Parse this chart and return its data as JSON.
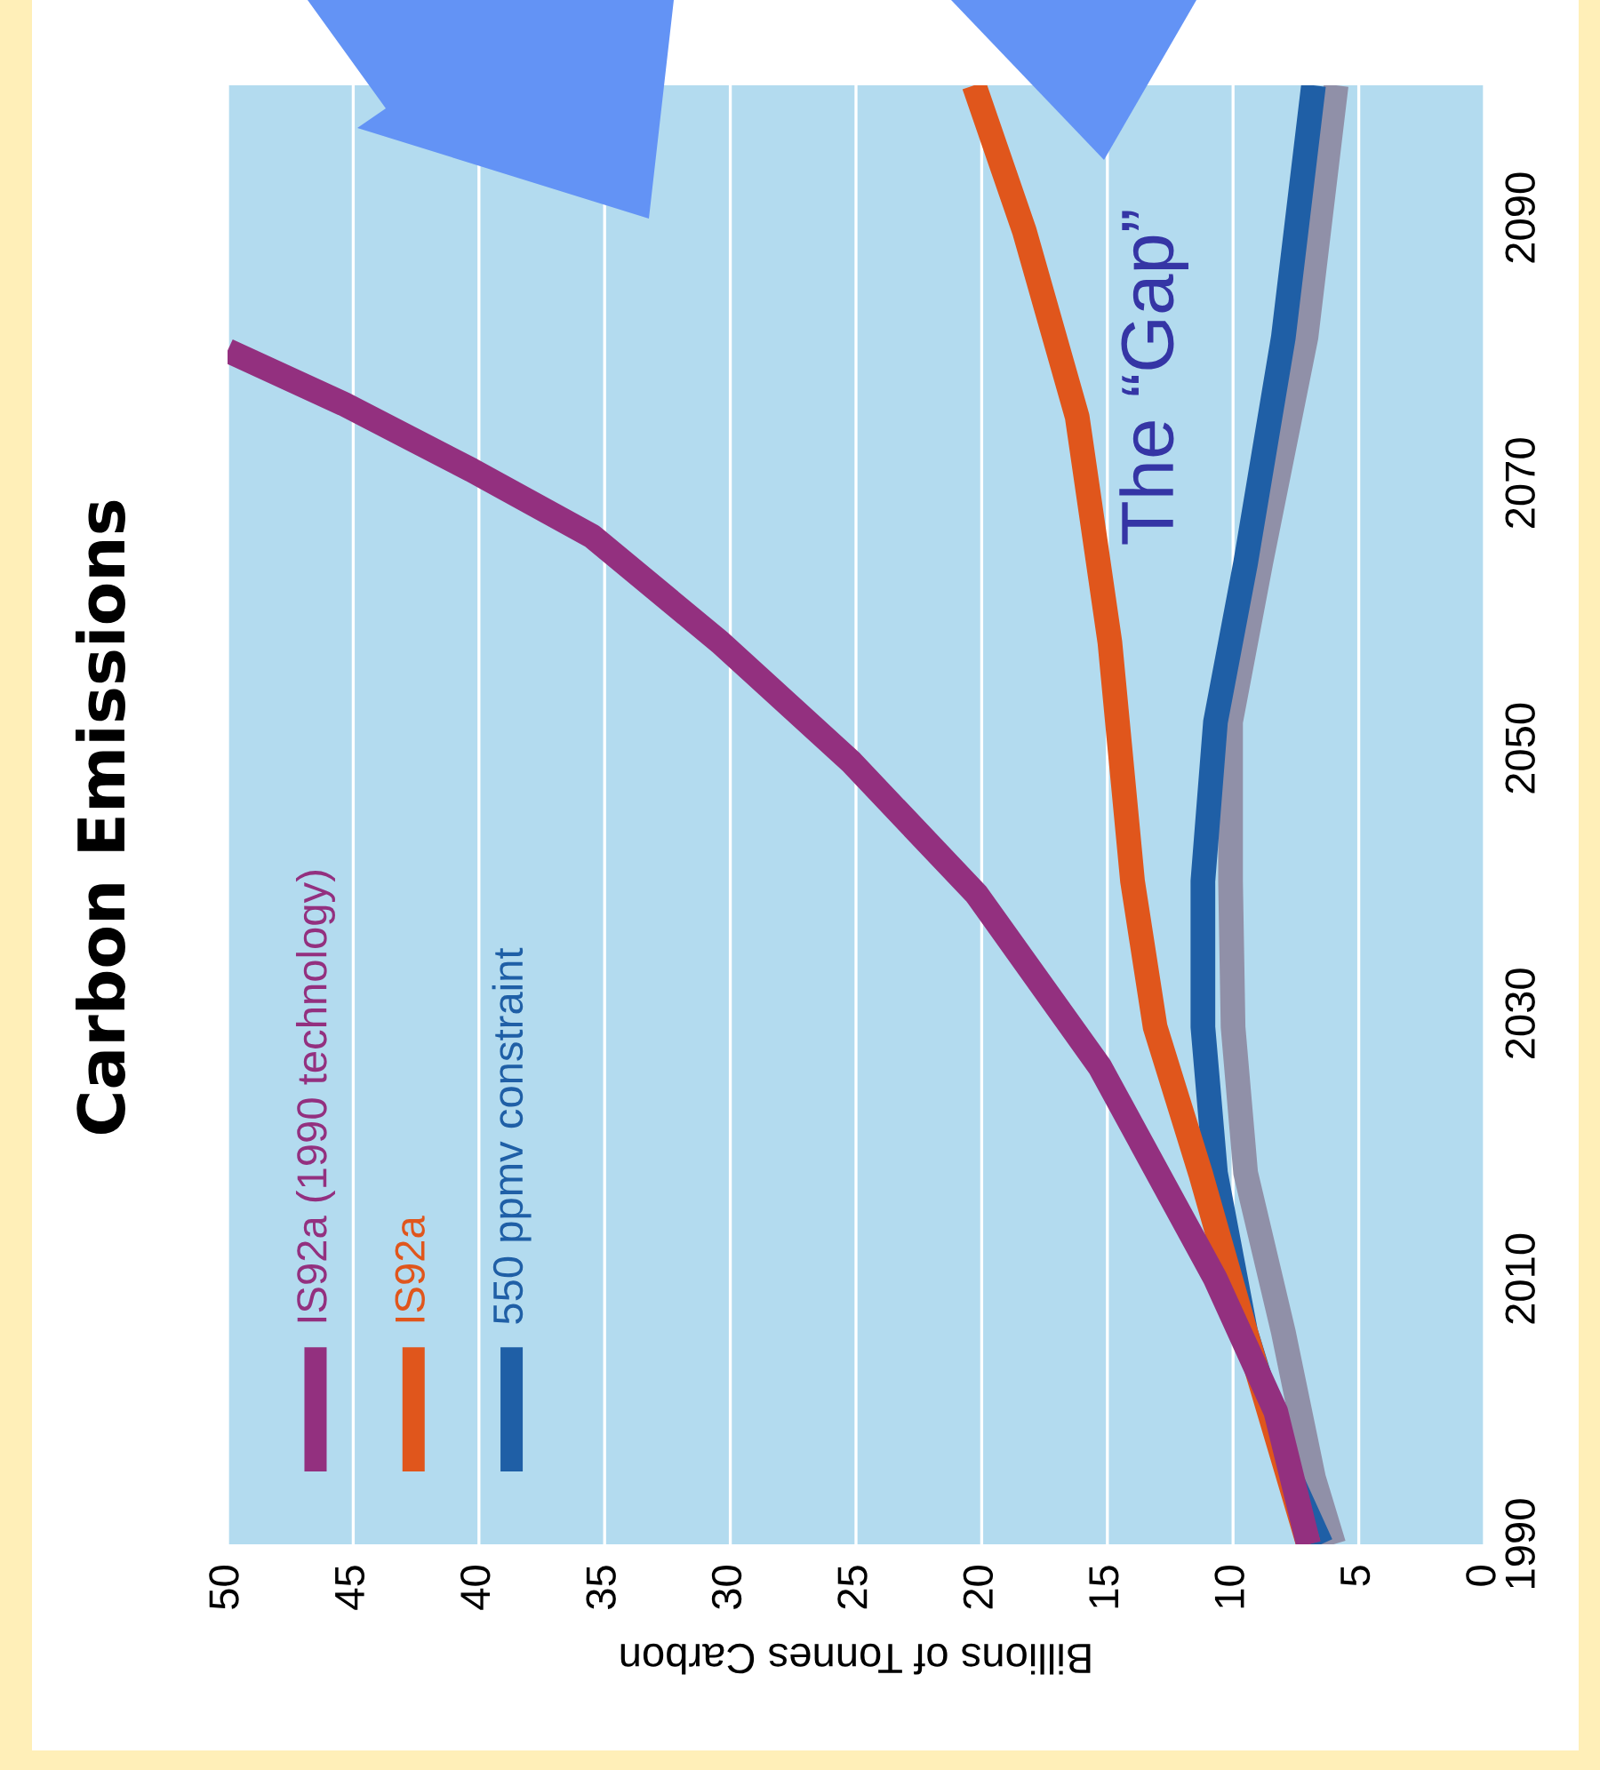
{
  "chart_data": {
    "type": "line",
    "title": "Carbon Emissions",
    "xlabel": "Billions of Tonnes Carbon",
    "orientation": "horizontal",
    "series": [
      {
        "name": "IS92a (1990 technology)",
        "color": "#93307f",
        "x": [
          1990,
          2000,
          2010,
          2026,
          2039,
          2049,
          2058,
          2066,
          2071,
          2076,
          2080
        ],
        "values": [
          7.0,
          8.3,
          10.7,
          15.3,
          20.2,
          25.2,
          30.4,
          35.5,
          40.3,
          45.4,
          50
        ]
      },
      {
        "name": "IS92a",
        "color": "#e0561c",
        "x": [
          1990,
          2006,
          2018,
          2029,
          2040,
          2058,
          2075,
          2089,
          2100
        ],
        "values": [
          7.0,
          9.5,
          11.3,
          13.1,
          14.0,
          14.9,
          16.2,
          18.3,
          20.3
        ]
      },
      {
        "name": "550 ppmv constraint",
        "color": "#1f5fa6",
        "x": [
          1990,
          1995,
          2006,
          2018,
          2029,
          2040,
          2052,
          2064,
          2081,
          2100
        ],
        "values": [
          6.5,
          7.7,
          9.5,
          10.7,
          11.2,
          11.2,
          10.7,
          9.5,
          8.0,
          6.8
        ]
      },
      {
        "color": "#9090a8",
        "x": [
          1990,
          1995,
          2006,
          2018,
          2029,
          2040,
          2052,
          2064,
          2081,
          2100
        ],
        "values": [
          6.0,
          6.8,
          8.0,
          9.5,
          10.0,
          10.1,
          10.1,
          8.9,
          7.1,
          5.9
        ]
      }
    ],
    "xlim": [
      50,
      0
    ],
    "xticks": [
      0,
      5,
      10,
      15,
      20,
      25,
      30,
      35,
      40,
      45,
      50
    ],
    "ylim": [
      1990,
      2100
    ],
    "yticks": [
      1990,
      2010,
      2030,
      2050,
      2070,
      2090
    ],
    "grid": "x",
    "legend": "bottom left",
    "marker": "none",
    "line_style": "solid",
    "annotations": [
      "The “Gap”"
    ]
  }
}
